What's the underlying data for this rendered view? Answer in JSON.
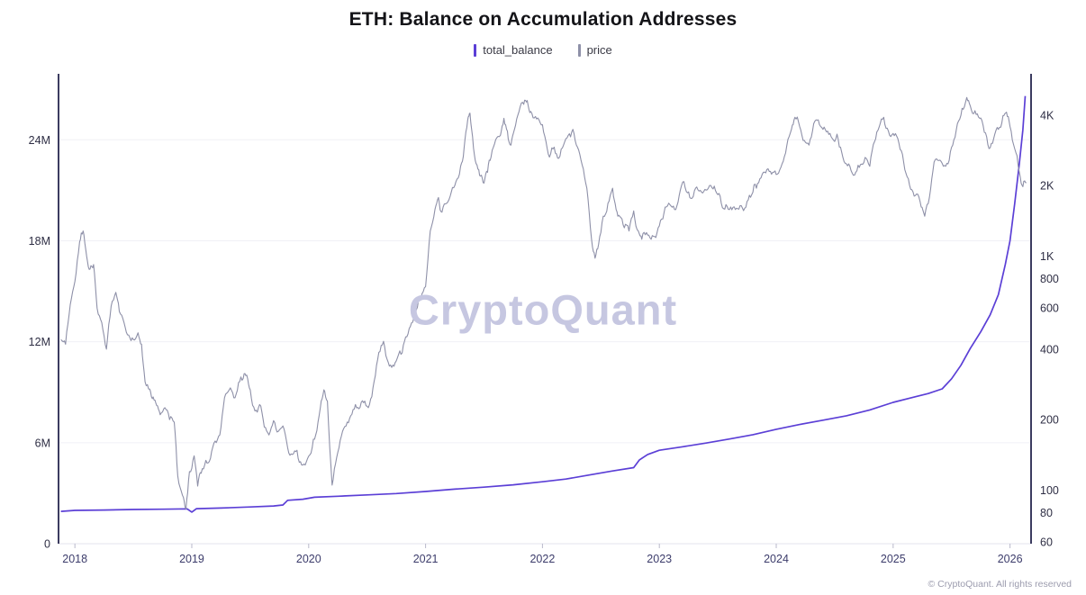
{
  "title": "ETH: Balance on Accumulation Addresses",
  "legend": {
    "items": [
      {
        "label": "total_balance",
        "color": "#5b3fd6"
      },
      {
        "label": "price",
        "color": "#8e90a8"
      }
    ]
  },
  "watermark": "CryptoQuant",
  "footer": "© CryptoQuant. All rights reserved",
  "chart_data": {
    "type": "line",
    "title": "ETH: Balance on Accumulation Addresses",
    "grid": true,
    "legend_position": "top",
    "x_axis": {
      "range": [
        2017.86,
        2026.18
      ],
      "ticks": [
        2018,
        2019,
        2020,
        2021,
        2022,
        2023,
        2024,
        2025,
        2026
      ],
      "labels": [
        "2018",
        "2019",
        "2020",
        "2021",
        "2022",
        "2023",
        "2024",
        "2025",
        "2026"
      ]
    },
    "y_axis_left": {
      "scale": "linear",
      "unit": "million ETH",
      "range": [
        0,
        27.6
      ],
      "ticks": [
        0,
        6,
        12,
        18,
        24
      ],
      "labels": [
        "0",
        "6M",
        "12M",
        "18M",
        "24M"
      ]
    },
    "y_axis_right": {
      "scale": "log",
      "unit": "USD",
      "range": [
        59,
        5700
      ],
      "ticks": [
        60,
        80,
        100,
        200,
        400,
        600,
        800,
        1000,
        2000,
        4000
      ],
      "labels": [
        "60",
        "80",
        "100",
        "200",
        "400",
        "600",
        "800",
        "1K",
        "2K",
        "4K"
      ]
    },
    "series": [
      {
        "name": "total_balance",
        "axis": "left",
        "color": "#5b3fd6",
        "unit": "million ETH",
        "points": [
          [
            2017.88,
            1.92
          ],
          [
            2018.0,
            1.98
          ],
          [
            2018.25,
            2.0
          ],
          [
            2018.5,
            2.03
          ],
          [
            2018.75,
            2.05
          ],
          [
            2018.96,
            2.07
          ],
          [
            2019.0,
            1.88
          ],
          [
            2019.04,
            2.08
          ],
          [
            2019.25,
            2.12
          ],
          [
            2019.5,
            2.18
          ],
          [
            2019.7,
            2.24
          ],
          [
            2019.78,
            2.3
          ],
          [
            2019.82,
            2.58
          ],
          [
            2019.95,
            2.64
          ],
          [
            2020.05,
            2.76
          ],
          [
            2020.25,
            2.82
          ],
          [
            2020.5,
            2.9
          ],
          [
            2020.75,
            2.98
          ],
          [
            2021.0,
            3.1
          ],
          [
            2021.25,
            3.24
          ],
          [
            2021.5,
            3.36
          ],
          [
            2021.75,
            3.5
          ],
          [
            2022.0,
            3.68
          ],
          [
            2022.2,
            3.84
          ],
          [
            2022.4,
            4.08
          ],
          [
            2022.6,
            4.32
          ],
          [
            2022.78,
            4.52
          ],
          [
            2022.83,
            4.98
          ],
          [
            2022.9,
            5.3
          ],
          [
            2023.0,
            5.55
          ],
          [
            2023.2,
            5.76
          ],
          [
            2023.4,
            5.98
          ],
          [
            2023.6,
            6.22
          ],
          [
            2023.8,
            6.48
          ],
          [
            2024.0,
            6.8
          ],
          [
            2024.2,
            7.08
          ],
          [
            2024.4,
            7.34
          ],
          [
            2024.6,
            7.6
          ],
          [
            2024.8,
            7.95
          ],
          [
            2025.0,
            8.4
          ],
          [
            2025.15,
            8.66
          ],
          [
            2025.3,
            8.92
          ],
          [
            2025.42,
            9.2
          ],
          [
            2025.5,
            9.8
          ],
          [
            2025.58,
            10.6
          ],
          [
            2025.66,
            11.6
          ],
          [
            2025.75,
            12.6
          ],
          [
            2025.83,
            13.6
          ],
          [
            2025.9,
            14.8
          ],
          [
            2025.96,
            16.6
          ],
          [
            2026.0,
            18.0
          ],
          [
            2026.04,
            20.2
          ],
          [
            2026.08,
            22.6
          ],
          [
            2026.11,
            24.6
          ],
          [
            2026.13,
            26.6
          ]
        ]
      },
      {
        "name": "price",
        "axis": "right",
        "color": "#8e90a8",
        "unit": "USD",
        "points": [
          [
            2017.88,
            440
          ],
          [
            2017.92,
            420
          ],
          [
            2017.96,
            620
          ],
          [
            2018.0,
            780
          ],
          [
            2018.04,
            1150
          ],
          [
            2018.07,
            1280
          ],
          [
            2018.1,
            1000
          ],
          [
            2018.13,
            880
          ],
          [
            2018.16,
            920
          ],
          [
            2018.19,
            600
          ],
          [
            2018.23,
            520
          ],
          [
            2018.27,
            400
          ],
          [
            2018.31,
            610
          ],
          [
            2018.35,
            700
          ],
          [
            2018.38,
            580
          ],
          [
            2018.42,
            520
          ],
          [
            2018.46,
            460
          ],
          [
            2018.5,
            440
          ],
          [
            2018.54,
            470
          ],
          [
            2018.57,
            420
          ],
          [
            2018.6,
            290
          ],
          [
            2018.64,
            270
          ],
          [
            2018.67,
            250
          ],
          [
            2018.7,
            230
          ],
          [
            2018.73,
            210
          ],
          [
            2018.77,
            225
          ],
          [
            2018.81,
            200
          ],
          [
            2018.85,
            195
          ],
          [
            2018.88,
            115
          ],
          [
            2018.92,
            95
          ],
          [
            2018.95,
            83
          ],
          [
            2018.98,
            120
          ],
          [
            2019.02,
            140
          ],
          [
            2019.05,
            104
          ],
          [
            2019.08,
            118
          ],
          [
            2019.12,
            134
          ],
          [
            2019.16,
            137
          ],
          [
            2019.2,
            162
          ],
          [
            2019.24,
            172
          ],
          [
            2019.28,
            248
          ],
          [
            2019.32,
            268
          ],
          [
            2019.36,
            248
          ],
          [
            2019.4,
            288
          ],
          [
            2019.44,
            300
          ],
          [
            2019.47,
            310
          ],
          [
            2019.5,
            268
          ],
          [
            2019.54,
            218
          ],
          [
            2019.58,
            232
          ],
          [
            2019.62,
            186
          ],
          [
            2019.66,
            172
          ],
          [
            2019.7,
            198
          ],
          [
            2019.74,
            178
          ],
          [
            2019.78,
            188
          ],
          [
            2019.82,
            152
          ],
          [
            2019.86,
            142
          ],
          [
            2019.9,
            148
          ],
          [
            2019.94,
            128
          ],
          [
            2019.98,
            132
          ],
          [
            2020.02,
            144
          ],
          [
            2020.06,
            172
          ],
          [
            2020.1,
            226
          ],
          [
            2020.13,
            268
          ],
          [
            2020.16,
            240
          ],
          [
            2020.2,
            105
          ],
          [
            2020.24,
            138
          ],
          [
            2020.28,
            170
          ],
          [
            2020.32,
            188
          ],
          [
            2020.36,
            208
          ],
          [
            2020.4,
            232
          ],
          [
            2020.44,
            226
          ],
          [
            2020.48,
            240
          ],
          [
            2020.52,
            232
          ],
          [
            2020.56,
            292
          ],
          [
            2020.6,
            388
          ],
          [
            2020.64,
            432
          ],
          [
            2020.68,
            352
          ],
          [
            2020.72,
            342
          ],
          [
            2020.76,
            368
          ],
          [
            2020.8,
            386
          ],
          [
            2020.84,
            452
          ],
          [
            2020.88,
            518
          ],
          [
            2020.92,
            588
          ],
          [
            2020.96,
            660
          ],
          [
            2021.0,
            740
          ],
          [
            2021.04,
            1280
          ],
          [
            2021.08,
            1580
          ],
          [
            2021.11,
            1780
          ],
          [
            2021.14,
            1540
          ],
          [
            2021.18,
            1680
          ],
          [
            2021.22,
            1880
          ],
          [
            2021.26,
            2080
          ],
          [
            2021.3,
            2420
          ],
          [
            2021.33,
            2900
          ],
          [
            2021.36,
            3800
          ],
          [
            2021.38,
            4080
          ],
          [
            2021.41,
            2900
          ],
          [
            2021.44,
            2450
          ],
          [
            2021.47,
            2200
          ],
          [
            2021.5,
            2050
          ],
          [
            2021.53,
            2280
          ],
          [
            2021.56,
            2650
          ],
          [
            2021.6,
            3150
          ],
          [
            2021.64,
            3280
          ],
          [
            2021.67,
            3880
          ],
          [
            2021.7,
            3420
          ],
          [
            2021.73,
            2980
          ],
          [
            2021.76,
            3480
          ],
          [
            2021.8,
            4150
          ],
          [
            2021.84,
            4450
          ],
          [
            2021.87,
            4620
          ],
          [
            2021.9,
            4150
          ],
          [
            2021.94,
            3950
          ],
          [
            2021.98,
            3720
          ],
          [
            2022.02,
            3250
          ],
          [
            2022.06,
            2650
          ],
          [
            2022.1,
            2920
          ],
          [
            2022.14,
            2620
          ],
          [
            2022.18,
            2980
          ],
          [
            2022.22,
            3280
          ],
          [
            2022.26,
            3480
          ],
          [
            2022.3,
            2920
          ],
          [
            2022.34,
            2450
          ],
          [
            2022.38,
            1950
          ],
          [
            2022.42,
            1180
          ],
          [
            2022.45,
            980
          ],
          [
            2022.48,
            1120
          ],
          [
            2022.52,
            1480
          ],
          [
            2022.56,
            1680
          ],
          [
            2022.6,
            1950
          ],
          [
            2022.63,
            1580
          ],
          [
            2022.66,
            1480
          ],
          [
            2022.7,
            1320
          ],
          [
            2022.74,
            1280
          ],
          [
            2022.78,
            1560
          ],
          [
            2022.82,
            1280
          ],
          [
            2022.85,
            1180
          ],
          [
            2022.89,
            1260
          ],
          [
            2022.93,
            1180
          ],
          [
            2022.97,
            1200
          ],
          [
            2023.01,
            1420
          ],
          [
            2023.05,
            1620
          ],
          [
            2023.09,
            1660
          ],
          [
            2023.13,
            1580
          ],
          [
            2023.17,
            1820
          ],
          [
            2023.21,
            2080
          ],
          [
            2023.25,
            1880
          ],
          [
            2023.29,
            1800
          ],
          [
            2023.33,
            1920
          ],
          [
            2023.37,
            1860
          ],
          [
            2023.41,
            1920
          ],
          [
            2023.45,
            1960
          ],
          [
            2023.49,
            1860
          ],
          [
            2023.53,
            1680
          ],
          [
            2023.57,
            1660
          ],
          [
            2023.61,
            1620
          ],
          [
            2023.65,
            1580
          ],
          [
            2023.69,
            1640
          ],
          [
            2023.73,
            1600
          ],
          [
            2023.77,
            1820
          ],
          [
            2023.81,
            2020
          ],
          [
            2023.85,
            2060
          ],
          [
            2023.89,
            2280
          ],
          [
            2023.93,
            2360
          ],
          [
            2023.97,
            2280
          ],
          [
            2024.01,
            2240
          ],
          [
            2024.05,
            2480
          ],
          [
            2024.09,
            2960
          ],
          [
            2024.13,
            3480
          ],
          [
            2024.16,
            3920
          ],
          [
            2024.2,
            3580
          ],
          [
            2024.24,
            3120
          ],
          [
            2024.28,
            2980
          ],
          [
            2024.32,
            3680
          ],
          [
            2024.36,
            3820
          ],
          [
            2024.4,
            3480
          ],
          [
            2024.44,
            3420
          ],
          [
            2024.48,
            3180
          ],
          [
            2024.52,
            3320
          ],
          [
            2024.56,
            2780
          ],
          [
            2024.6,
            2480
          ],
          [
            2024.64,
            2320
          ],
          [
            2024.68,
            2280
          ],
          [
            2024.72,
            2460
          ],
          [
            2024.76,
            2640
          ],
          [
            2024.8,
            2420
          ],
          [
            2024.84,
            3080
          ],
          [
            2024.88,
            3560
          ],
          [
            2024.92,
            3920
          ],
          [
            2024.96,
            3420
          ],
          [
            2025.0,
            3340
          ],
          [
            2025.04,
            3180
          ],
          [
            2025.08,
            2720
          ],
          [
            2025.12,
            2180
          ],
          [
            2025.16,
            1920
          ],
          [
            2025.2,
            1840
          ],
          [
            2025.24,
            1620
          ],
          [
            2025.27,
            1480
          ],
          [
            2025.31,
            1780
          ],
          [
            2025.35,
            2520
          ],
          [
            2025.39,
            2560
          ],
          [
            2025.43,
            2420
          ],
          [
            2025.47,
            2480
          ],
          [
            2025.51,
            2980
          ],
          [
            2025.55,
            3680
          ],
          [
            2025.59,
            4280
          ],
          [
            2025.63,
            4760
          ],
          [
            2025.66,
            4380
          ],
          [
            2025.7,
            4180
          ],
          [
            2025.74,
            3880
          ],
          [
            2025.78,
            3380
          ],
          [
            2025.82,
            2880
          ],
          [
            2025.86,
            3180
          ],
          [
            2025.9,
            3480
          ],
          [
            2025.94,
            3980
          ],
          [
            2025.97,
            4120
          ],
          [
            2026.0,
            3580
          ],
          [
            2026.04,
            2880
          ],
          [
            2026.08,
            2280
          ],
          [
            2026.11,
            1980
          ],
          [
            2026.14,
            2060
          ]
        ]
      }
    ]
  }
}
